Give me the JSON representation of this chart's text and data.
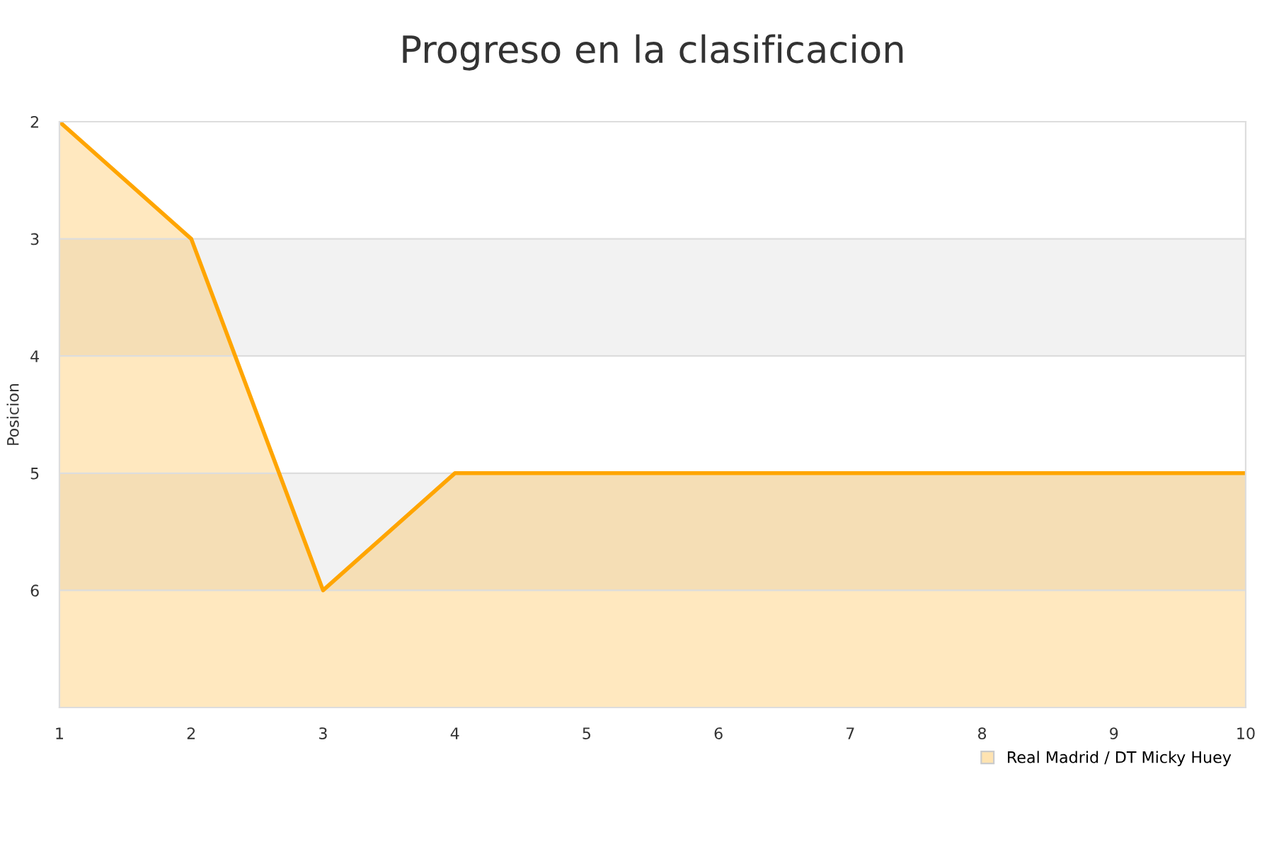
{
  "chart_data": {
    "type": "area",
    "title": "Progreso en la clasificacion",
    "ylabel": "Posicion",
    "x": [
      1,
      2,
      3,
      4,
      5,
      6,
      7,
      8,
      9,
      10
    ],
    "series": [
      {
        "name": "Real Madrid / DT Micky Huey",
        "color": "#ffa500",
        "values": [
          2,
          3,
          6,
          5,
          5,
          5,
          5,
          5,
          5,
          5
        ]
      }
    ],
    "xlim": [
      1,
      10
    ],
    "xticks": [
      1,
      2,
      3,
      4,
      5,
      6,
      7,
      8,
      9,
      10
    ],
    "ylim": [
      7,
      2
    ],
    "yticks": [
      2,
      3,
      4,
      5,
      6
    ],
    "bands": [
      {
        "axis": "y",
        "from": 3,
        "to": 4,
        "color": "#f2f2f2"
      },
      {
        "axis": "y",
        "from": 5,
        "to": 6,
        "color": "#f2f2f2"
      }
    ],
    "grid": "y",
    "legend": "bottom right",
    "marker": "none"
  }
}
